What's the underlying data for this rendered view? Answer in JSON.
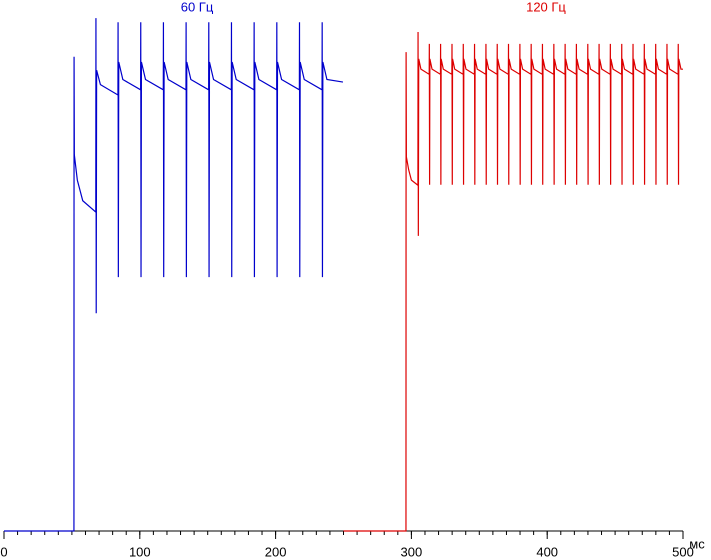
{
  "chart_data": {
    "type": "line",
    "xlim": [
      0,
      500
    ],
    "ylim": [
      0,
      100
    ],
    "xticks": [
      0,
      100,
      200,
      300,
      400,
      500
    ],
    "xminorticks": [
      0,
      10,
      20,
      30,
      40,
      50,
      60,
      70,
      80,
      90,
      100,
      110,
      120,
      130,
      140,
      150,
      160,
      170,
      180,
      190,
      200,
      210,
      220,
      230,
      240,
      250,
      260,
      270,
      280,
      290,
      300,
      310,
      320,
      330,
      340,
      350,
      360,
      370,
      380,
      390,
      400,
      410,
      420,
      430,
      440,
      450,
      460,
      470,
      480,
      490,
      500
    ],
    "x_unit": "мс",
    "series": [
      {
        "name": "60 Гц",
        "color": "#0000cc",
        "x": [
          0,
          51.5,
          51.6,
          51.8,
          54,
          58,
          67.6,
          67.7,
          67.9,
          68.2,
          71,
          83.9,
          84.0,
          84.2,
          84.5,
          87.5,
          100.6,
          100.7,
          100.9,
          101.2,
          104.2,
          117.3,
          117.4,
          117.6,
          117.9,
          120.9,
          134.0,
          134.1,
          134.3,
          134.6,
          137.6,
          150.7,
          150.8,
          151.0,
          151.3,
          154.3,
          167.4,
          167.5,
          167.7,
          168.0,
          171.0,
          184.1,
          184.2,
          184.4,
          184.7,
          187.7,
          200.8,
          200.9,
          201.1,
          201.4,
          204.4,
          217.5,
          217.6,
          217.8,
          218.1,
          221.1,
          234.2,
          234.3,
          234.5,
          234.8,
          237.8,
          249.6
        ],
        "values": [
          0,
          0,
          91.9,
          72.9,
          68,
          64,
          61.8,
          99.4,
          42.2,
          89.3,
          86.5,
          84.5,
          98.6,
          49.2,
          90.9,
          87.5,
          85.5,
          98.6,
          49.2,
          90.9,
          87.5,
          85.5,
          98.6,
          49.2,
          90.9,
          87.5,
          85.5,
          98.6,
          49.2,
          90.9,
          87.5,
          85.5,
          98.6,
          49.2,
          90.9,
          87.5,
          85.5,
          98.6,
          49.2,
          90.9,
          87.5,
          85.5,
          98.6,
          49.2,
          90.9,
          87.5,
          85.5,
          98.6,
          49.2,
          90.9,
          87.5,
          85.5,
          98.6,
          49.2,
          90.9,
          87.5,
          85.5,
          98.6,
          49.2,
          90.9,
          87.5,
          87
        ]
      },
      {
        "name": "120 Гц",
        "color": "#dd0000",
        "x": [
          250,
          296,
          296.1,
          296.3,
          298,
          300,
          304.8,
          304.9,
          305.1,
          305.4,
          307,
          313.1,
          313.2,
          313.4,
          313.6,
          315.2,
          321.4,
          321.5,
          321.7,
          321.9,
          323.5,
          329.8,
          329.9,
          330.1,
          330.3,
          331.9,
          338.1,
          338.2,
          338.4,
          338.6,
          340.2,
          346.4,
          346.5,
          346.7,
          346.9,
          348.5,
          354.8,
          354.9,
          355.1,
          355.3,
          356.9,
          363.1,
          363.2,
          363.4,
          363.6,
          365.2,
          371.4,
          371.5,
          371.7,
          371.9,
          373.5,
          379.8,
          379.9,
          380.1,
          380.3,
          381.9,
          388.1,
          388.2,
          388.4,
          388.6,
          390.2,
          396.4,
          396.5,
          396.7,
          396.9,
          398.5,
          404.8,
          404.9,
          405.1,
          405.3,
          406.9,
          413.1,
          413.2,
          413.4,
          413.6,
          415.2,
          421.4,
          421.5,
          421.7,
          421.9,
          423.5,
          429.8,
          429.9,
          430.1,
          430.3,
          431.9,
          438.1,
          438.2,
          438.4,
          438.6,
          440.2,
          446.4,
          446.5,
          446.7,
          446.9,
          448.5,
          454.8,
          454.9,
          455.1,
          455.3,
          456.9,
          463.1,
          463.2,
          463.4,
          463.6,
          465.2,
          471.4,
          471.5,
          471.7,
          471.9,
          473.5,
          479.8,
          479.9,
          480.1,
          480.3,
          481.9,
          488.1,
          488.2,
          488.4,
          488.6,
          490.2,
          496.4,
          496.5,
          496.7,
          496.9,
          498.5,
          500
        ],
        "values": [
          0,
          0,
          92.8,
          72.5,
          70,
          68,
          67,
          96.7,
          57.2,
          91.5,
          89.5,
          88.5,
          94.4,
          67.1,
          91.5,
          89.5,
          88.5,
          94.4,
          67.1,
          91.5,
          89.5,
          88.5,
          94.4,
          67.1,
          91.5,
          89.5,
          88.5,
          94.4,
          67.1,
          91.5,
          89.5,
          88.5,
          94.4,
          67.1,
          91.5,
          89.5,
          88.5,
          94.4,
          67.1,
          91.5,
          89.5,
          88.5,
          94.4,
          67.1,
          91.5,
          89.5,
          88.5,
          94.4,
          67.1,
          91.5,
          89.5,
          88.5,
          94.4,
          67.1,
          91.5,
          89.5,
          88.5,
          94.4,
          67.1,
          91.5,
          89.5,
          88.5,
          94.4,
          67.1,
          91.5,
          89.5,
          88.5,
          94.4,
          67.1,
          91.5,
          89.5,
          88.5,
          94.4,
          67.1,
          91.5,
          89.5,
          88.5,
          94.4,
          67.1,
          91.5,
          89.5,
          88.5,
          94.4,
          67.1,
          91.5,
          89.5,
          88.5,
          94.4,
          67.1,
          91.5,
          89.5,
          88.5,
          94.4,
          67.1,
          91.5,
          89.5,
          88.5,
          94.4,
          67.1,
          91.5,
          89.5,
          88.5,
          94.4,
          67.1,
          91.5,
          89.5,
          88.5,
          94.4,
          67.1,
          91.5,
          89.5,
          88.5,
          94.4,
          67.1,
          91.5,
          89.5,
          88.5,
          94.4,
          67.1,
          91.5,
          89.5,
          88.5,
          94.4,
          67.1,
          91.5,
          89.5,
          89.5
        ]
      }
    ]
  }
}
